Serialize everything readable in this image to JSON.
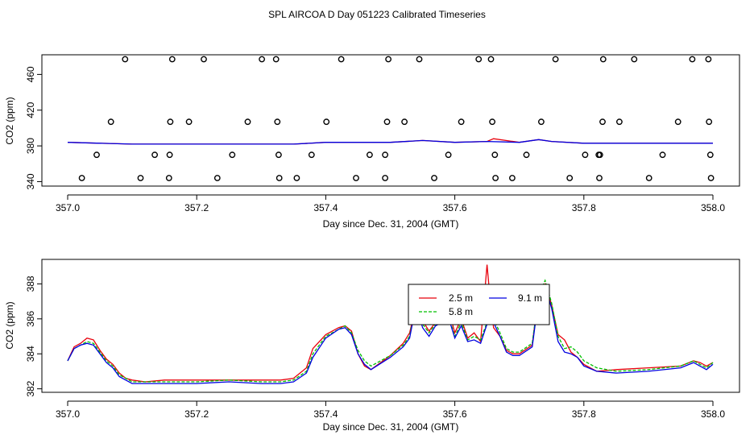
{
  "title": "SPL AIRCOA D  Day 051223  Calibrated Timeseries",
  "colors": {
    "red": "#e8000b",
    "green": "#00c000",
    "blue": "#0000e0"
  },
  "chart_data": [
    {
      "type": "scatter",
      "xlabel": "Day since Dec. 31, 2004 (GMT)",
      "ylabel": "CO2 (ppm)",
      "xlim": [
        357.0,
        358.0
      ],
      "ylim": [
        335,
        482
      ],
      "xticks": [
        357.0,
        357.2,
        357.4,
        357.6,
        357.8,
        358.0
      ],
      "xtick_labels": [
        "357.0",
        "357.2",
        "357.4",
        "357.6",
        "357.8",
        "358.0"
      ],
      "yticks": [
        340,
        380,
        420,
        460
      ],
      "ytick_labels": [
        "340",
        "380",
        "420",
        "460"
      ],
      "grid": false,
      "legend": null,
      "calibration_points": {
        "levels": [
          344,
          370,
          407,
          477
        ],
        "x_by_level": [
          [
            357.022,
            357.113,
            357.157,
            357.232,
            357.328,
            357.355,
            357.447,
            357.492,
            357.568,
            357.663,
            357.689,
            357.778,
            357.824,
            357.901,
            357.997
          ],
          [
            357.045,
            357.135,
            357.158,
            357.255,
            357.327,
            357.378,
            357.468,
            357.492,
            357.59,
            357.662,
            357.711,
            357.802,
            357.823,
            357.825,
            357.922,
            357.996
          ],
          [
            357.067,
            357.159,
            357.188,
            357.279,
            357.325,
            357.401,
            357.495,
            357.522,
            357.61,
            357.658,
            357.734,
            357.829,
            357.855,
            357.946,
            357.994
          ],
          [
            357.089,
            357.162,
            357.211,
            357.301,
            357.323,
            357.424,
            357.497,
            357.545,
            357.637,
            357.656,
            357.756,
            357.83,
            357.878,
            357.968,
            357.993
          ]
        ]
      },
      "series": [
        {
          "color": "red",
          "x": [
            357.0,
            357.05,
            357.1,
            357.15,
            357.2,
            357.25,
            357.3,
            357.35,
            357.4,
            357.45,
            357.5,
            357.55,
            357.6,
            357.65,
            357.66,
            357.7,
            357.73,
            357.75,
            357.8,
            357.85,
            357.9,
            357.95,
            358.0
          ],
          "y": [
            384,
            383,
            382,
            382,
            382,
            382,
            382,
            382,
            384,
            384,
            384,
            386,
            384,
            385,
            388,
            384,
            387,
            385,
            383,
            383,
            383,
            383,
            383
          ]
        },
        {
          "color": "blue",
          "x": [
            357.0,
            357.05,
            357.1,
            357.15,
            357.2,
            357.25,
            357.3,
            357.35,
            357.4,
            357.45,
            357.5,
            357.55,
            357.6,
            357.65,
            357.7,
            357.73,
            357.75,
            357.8,
            357.85,
            357.9,
            357.95,
            358.0
          ],
          "y": [
            384,
            383,
            382,
            382,
            382,
            382,
            382,
            382,
            384,
            384,
            384,
            386,
            384,
            385,
            384,
            387,
            385,
            383,
            383,
            383,
            383,
            383
          ]
        }
      ]
    },
    {
      "type": "line",
      "xlabel": "Day since Dec. 31, 2004 (GMT)",
      "ylabel": "CO2 (ppm)",
      "xlim": [
        357.0,
        358.0
      ],
      "ylim": [
        381.8,
        389.4
      ],
      "xticks": [
        357.0,
        357.2,
        357.4,
        357.6,
        357.8,
        358.0
      ],
      "xtick_labels": [
        "357.0",
        "357.2",
        "357.4",
        "357.6",
        "357.8",
        "358.0"
      ],
      "yticks": [
        382,
        384,
        386,
        388
      ],
      "ytick_labels": [
        "382",
        "384",
        "386",
        "388"
      ],
      "grid": false,
      "legend": "top-center",
      "series": [
        {
          "name": "2.5 m",
          "color": "red",
          "x": [
            357.0,
            357.01,
            357.02,
            357.03,
            357.04,
            357.05,
            357.06,
            357.07,
            357.08,
            357.09,
            357.1,
            357.12,
            357.15,
            357.2,
            357.25,
            357.3,
            357.33,
            357.35,
            357.37,
            357.38,
            357.4,
            357.42,
            357.43,
            357.44,
            357.45,
            357.46,
            357.47,
            357.5,
            357.52,
            357.53,
            357.54,
            357.55,
            357.56,
            357.57,
            357.58,
            357.59,
            357.6,
            357.61,
            357.62,
            357.63,
            357.64,
            357.65,
            357.655,
            357.66,
            357.67,
            357.68,
            357.69,
            357.7,
            357.72,
            357.73,
            357.74,
            357.75,
            357.76,
            357.77,
            357.78,
            357.79,
            357.8,
            357.82,
            357.85,
            357.9,
            357.95,
            357.97,
            357.98,
            357.99,
            358.0
          ],
          "y": [
            383.6,
            384.4,
            384.6,
            384.9,
            384.8,
            384.2,
            383.7,
            383.4,
            382.9,
            382.6,
            382.5,
            382.4,
            382.5,
            382.5,
            382.5,
            382.5,
            382.5,
            382.6,
            383.2,
            384.3,
            385.1,
            385.5,
            385.6,
            385.3,
            384.0,
            383.3,
            383.1,
            383.9,
            384.6,
            385.2,
            386.8,
            385.9,
            385.3,
            385.8,
            386.1,
            386.6,
            385.2,
            386.0,
            384.9,
            385.2,
            384.7,
            389.1,
            387.0,
            385.5,
            385.0,
            384.2,
            384.0,
            384.0,
            384.5,
            387.5,
            388.0,
            386.8,
            385.1,
            384.8,
            384.1,
            383.8,
            383.4,
            383.0,
            383.1,
            383.2,
            383.3,
            383.6,
            383.5,
            383.3,
            383.5
          ]
        },
        {
          "name": "5.8 m",
          "color": "green",
          "x": [
            357.0,
            357.01,
            357.02,
            357.03,
            357.04,
            357.05,
            357.06,
            357.07,
            357.08,
            357.09,
            357.1,
            357.12,
            357.15,
            357.2,
            357.25,
            357.3,
            357.33,
            357.35,
            357.37,
            357.38,
            357.4,
            357.42,
            357.43,
            357.44,
            357.45,
            357.46,
            357.47,
            357.5,
            357.52,
            357.53,
            357.54,
            357.55,
            357.56,
            357.57,
            357.58,
            357.59,
            357.6,
            357.61,
            357.62,
            357.63,
            357.64,
            357.65,
            357.655,
            357.66,
            357.67,
            357.68,
            357.69,
            357.7,
            357.72,
            357.73,
            357.74,
            357.75,
            357.76,
            357.77,
            357.78,
            357.79,
            357.8,
            357.82,
            357.85,
            357.9,
            357.95,
            357.97,
            357.98,
            357.99,
            358.0
          ],
          "y": [
            383.6,
            384.3,
            384.5,
            384.7,
            384.6,
            384.1,
            383.6,
            383.3,
            382.8,
            382.6,
            382.4,
            382.4,
            382.4,
            382.4,
            382.5,
            382.4,
            382.4,
            382.5,
            383.0,
            384.0,
            385.0,
            385.4,
            385.6,
            385.2,
            384.2,
            383.6,
            383.3,
            383.9,
            384.5,
            385.0,
            387.0,
            385.7,
            385.2,
            385.7,
            385.9,
            386.2,
            385.0,
            385.8,
            384.8,
            385.0,
            384.8,
            385.8,
            386.1,
            386.0,
            385.2,
            384.3,
            384.1,
            384.1,
            384.6,
            387.4,
            388.2,
            386.9,
            385.0,
            384.3,
            384.4,
            384.1,
            383.6,
            383.2,
            383.0,
            383.1,
            383.3,
            383.6,
            383.4,
            383.2,
            383.5
          ]
        },
        {
          "name": "9.1 m",
          "color": "blue",
          "x": [
            357.0,
            357.01,
            357.02,
            357.03,
            357.04,
            357.05,
            357.06,
            357.07,
            357.08,
            357.09,
            357.1,
            357.12,
            357.15,
            357.2,
            357.25,
            357.3,
            357.33,
            357.35,
            357.37,
            357.38,
            357.4,
            357.42,
            357.43,
            357.44,
            357.45,
            357.46,
            357.47,
            357.5,
            357.52,
            357.53,
            357.54,
            357.55,
            357.56,
            357.57,
            357.58,
            357.59,
            357.6,
            357.61,
            357.62,
            357.63,
            357.64,
            357.65,
            357.655,
            357.66,
            357.67,
            357.68,
            357.69,
            357.7,
            357.72,
            357.73,
            357.74,
            357.75,
            357.76,
            357.77,
            357.78,
            357.79,
            357.8,
            357.82,
            357.85,
            357.9,
            357.95,
            357.97,
            357.98,
            357.99,
            358.0
          ],
          "y": [
            383.6,
            384.3,
            384.5,
            384.6,
            384.5,
            384.0,
            383.5,
            383.2,
            382.7,
            382.5,
            382.3,
            382.3,
            382.3,
            382.3,
            382.4,
            382.3,
            382.3,
            382.4,
            382.9,
            383.8,
            384.9,
            385.4,
            385.5,
            385.1,
            384.0,
            383.4,
            383.1,
            383.8,
            384.4,
            384.9,
            386.8,
            385.5,
            385.0,
            385.6,
            385.8,
            386.1,
            384.9,
            385.6,
            384.7,
            384.8,
            384.6,
            385.7,
            386.0,
            385.8,
            385.0,
            384.1,
            383.9,
            383.9,
            384.4,
            387.2,
            387.9,
            386.6,
            384.7,
            384.1,
            384.0,
            383.8,
            383.3,
            383.0,
            382.9,
            383.0,
            383.2,
            383.5,
            383.3,
            383.1,
            383.4
          ]
        }
      ]
    }
  ]
}
